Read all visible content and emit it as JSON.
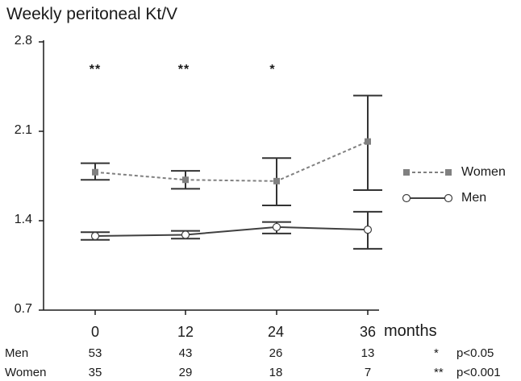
{
  "chart_data": {
    "type": "line",
    "title": "Weekly peritoneal Kt/V",
    "xlabel": "months",
    "ylabel": "",
    "x": [
      0,
      12,
      24,
      36
    ],
    "x_tick_labels": [
      "0",
      "12",
      "24",
      "36"
    ],
    "ylim": [
      0.7,
      2.8
    ],
    "y_ticks": [
      "0.7",
      "1.4",
      "2.1",
      "2.8"
    ],
    "series": [
      {
        "name": "Women",
        "style": "dashed",
        "marker": "filled-square",
        "color": "#808080",
        "values": [
          1.78,
          1.72,
          1.71,
          2.02
        ],
        "err_low": [
          1.72,
          1.65,
          1.52,
          1.64
        ],
        "err_high": [
          1.85,
          1.79,
          1.89,
          2.38
        ]
      },
      {
        "name": "Men",
        "style": "solid",
        "marker": "open-circle",
        "color": "#404040",
        "values": [
          1.28,
          1.29,
          1.35,
          1.33
        ],
        "err_low": [
          1.25,
          1.26,
          1.3,
          1.18
        ],
        "err_high": [
          1.31,
          1.32,
          1.39,
          1.47
        ]
      }
    ],
    "significance": [
      "**",
      "**",
      "*",
      ""
    ],
    "legend_position": "right",
    "grid": false,
    "n_table": {
      "rows": [
        {
          "label": "Men",
          "values": [
            "53",
            "43",
            "26",
            "13"
          ]
        },
        {
          "label": "Women",
          "values": [
            "35",
            "29",
            "18",
            "7"
          ]
        }
      ]
    },
    "footnotes": [
      {
        "symbol": "*",
        "text": "p<0.05"
      },
      {
        "symbol": "**",
        "text": "p<0.001"
      }
    ]
  }
}
